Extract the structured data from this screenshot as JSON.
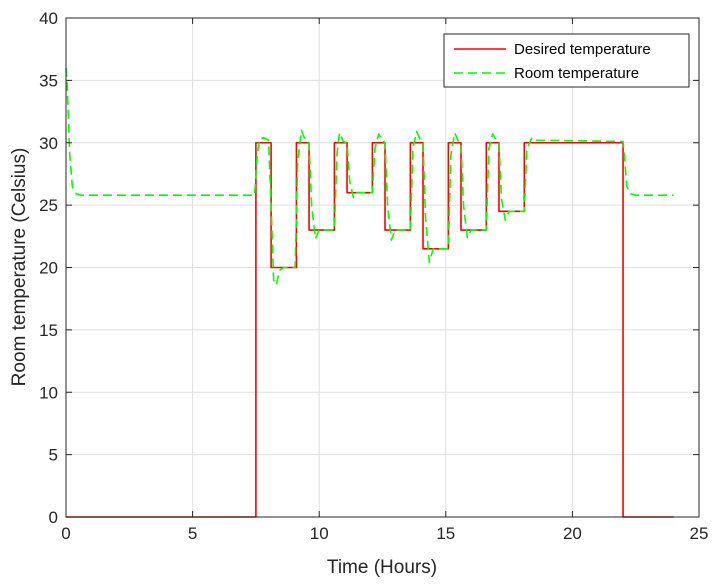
{
  "chart_data": {
    "type": "line",
    "xlabel": "Time (Hours)",
    "ylabel": "Room temperature (Celsius)",
    "xlim": [
      0,
      25
    ],
    "ylim": [
      0,
      40
    ],
    "xticks": [
      0,
      5,
      10,
      15,
      20,
      25
    ],
    "yticks": [
      0,
      5,
      10,
      15,
      20,
      25,
      30,
      35,
      40
    ],
    "grid": true,
    "legend_position": "top-right",
    "series": [
      {
        "name": "Desired temperature",
        "color": "#ff0000",
        "style": "solid",
        "x": [
          0,
          7.5,
          7.5,
          8.1,
          8.1,
          9.1,
          9.1,
          9.6,
          9.6,
          10.6,
          10.6,
          11.1,
          11.1,
          12.1,
          12.1,
          12.6,
          12.6,
          13.6,
          13.6,
          14.1,
          14.1,
          15.1,
          15.1,
          15.6,
          15.6,
          16.6,
          16.6,
          17.1,
          17.1,
          18.1,
          18.1,
          22.0,
          22.0,
          24.0
        ],
        "y": [
          0,
          0,
          30,
          30,
          20,
          20,
          30,
          30,
          23,
          23,
          30,
          30,
          26,
          26,
          30,
          30,
          23,
          23,
          30,
          30,
          21.5,
          21.5,
          30,
          30,
          23,
          23,
          30,
          30,
          24.5,
          24.5,
          30,
          30,
          0,
          0
        ]
      },
      {
        "name": "Room temperature",
        "color": "#00ff00",
        "style": "dashed",
        "x": [
          0,
          0.05,
          0.15,
          0.25,
          0.4,
          0.6,
          7.45,
          7.55,
          7.65,
          7.8,
          8.0,
          8.1,
          8.2,
          8.3,
          8.45,
          8.6,
          9.05,
          9.15,
          9.3,
          9.45,
          9.6,
          9.7,
          9.85,
          10.0,
          10.6,
          10.7,
          10.8,
          10.95,
          11.1,
          11.2,
          11.35,
          11.5,
          12.1,
          12.2,
          12.35,
          12.5,
          12.6,
          12.7,
          12.85,
          13.0,
          13.6,
          13.7,
          13.85,
          14.0,
          14.1,
          14.2,
          14.35,
          14.5,
          15.1,
          15.2,
          15.35,
          15.5,
          15.6,
          15.7,
          15.85,
          16.0,
          16.6,
          16.7,
          16.85,
          17.0,
          17.1,
          17.2,
          17.35,
          17.5,
          18.1,
          18.2,
          18.4,
          18.6,
          22.0,
          22.05,
          22.15,
          22.3,
          22.5,
          24.0
        ],
        "y": [
          36.0,
          34.5,
          29.0,
          26.5,
          25.9,
          25.8,
          25.8,
          29.0,
          30.3,
          30.4,
          30.2,
          25.0,
          19.0,
          18.6,
          19.8,
          20.0,
          20.0,
          28.5,
          31.0,
          30.2,
          30.0,
          25.0,
          22.3,
          23.0,
          23.0,
          29.0,
          30.8,
          30.1,
          30.0,
          27.0,
          25.6,
          26.0,
          26.0,
          29.5,
          30.7,
          30.2,
          30.0,
          25.0,
          22.2,
          23.0,
          23.0,
          29.5,
          30.9,
          30.2,
          30.0,
          24.0,
          20.4,
          21.5,
          21.5,
          29.0,
          30.8,
          30.1,
          30.0,
          25.0,
          22.4,
          23.0,
          23.0,
          29.5,
          30.7,
          30.2,
          30.0,
          25.5,
          23.8,
          24.5,
          24.5,
          29.5,
          30.4,
          30.2,
          30.1,
          29.0,
          26.5,
          25.9,
          25.8,
          25.8
        ]
      }
    ]
  }
}
